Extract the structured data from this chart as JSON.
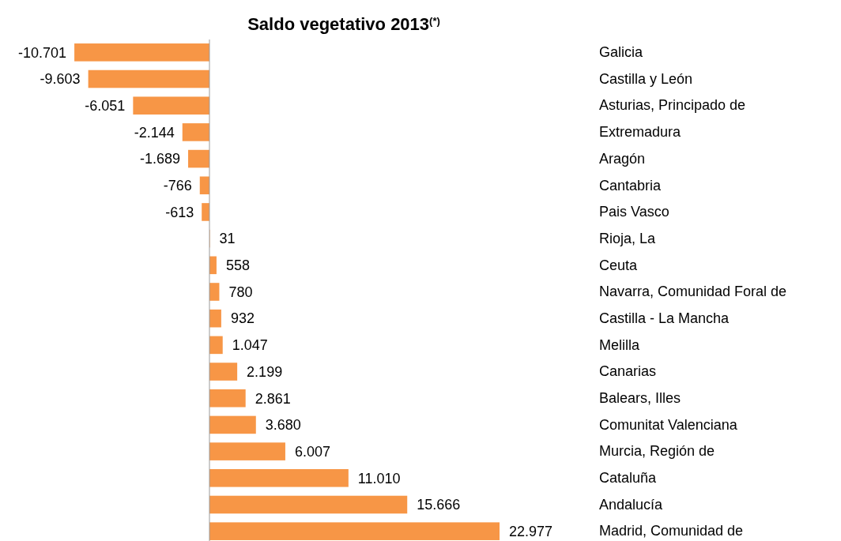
{
  "chart_data": {
    "type": "bar",
    "orientation": "horizontal",
    "title": "Saldo vegetativo 2013$^{(*)}$",
    "categories": [
      "Galicia",
      "Castilla y León",
      "Asturias, Principado de",
      "Extremadura",
      "Aragón",
      "Cantabria",
      "Pais Vasco",
      "Rioja, La",
      "Ceuta",
      "Navarra, Comunidad Foral de",
      "Castilla - La Mancha",
      "Melilla",
      "Canarias",
      "Balears, Illes",
      "Comunitat Valenciana",
      "Murcia, Región de",
      "Cataluña",
      "Andalucía",
      "Madrid, Comunidad de"
    ],
    "values": [
      -10701,
      -9603,
      -6051,
      -2144,
      -1689,
      -766,
      -613,
      31,
      558,
      780,
      932,
      1047,
      2199,
      2861,
      3680,
      6007,
      11010,
      15666,
      22977
    ],
    "value_labels": [
      "-10.701",
      "-9.603",
      "-6.051",
      "-2.144",
      "-1.689",
      "-766",
      "-613",
      "31",
      "558",
      "780",
      "932",
      "1.047",
      "2.199",
      "2.861",
      "3.680",
      "6.007",
      "11.010",
      "15.666",
      "22.977"
    ],
    "color": "#f79646",
    "grid": false,
    "legend": false
  }
}
